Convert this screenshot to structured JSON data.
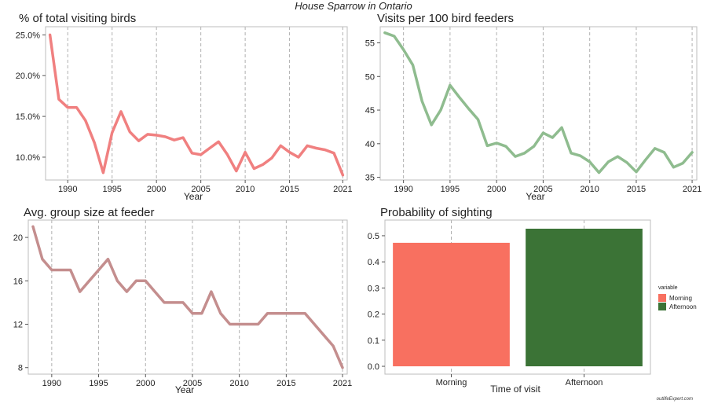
{
  "figure": {
    "title": "House Sparrow in Ontario",
    "credit": "outlifeExpert.com"
  },
  "chart_data": [
    {
      "type": "line",
      "title": "% of total visiting birds",
      "xlabel": "Year",
      "ylabel": "",
      "x_ticks": [
        1990,
        1995,
        2000,
        2005,
        2010,
        2015,
        2021
      ],
      "y_ticks": [
        10,
        15,
        20,
        25
      ],
      "y_tick_labels": [
        "10.0%",
        "15.0%",
        "20.0%",
        "25.0%"
      ],
      "xlim": [
        1987.5,
        2021.5
      ],
      "ylim": [
        7.2,
        26
      ],
      "grid": "vertical dashed at x ticks",
      "color": "#F08080",
      "x": [
        1988,
        1989,
        1990,
        1991,
        1992,
        1993,
        1994,
        1995,
        1996,
        1997,
        1998,
        1999,
        2000,
        2001,
        2002,
        2003,
        2004,
        2005,
        2006,
        2007,
        2008,
        2009,
        2010,
        2011,
        2012,
        2013,
        2014,
        2015,
        2016,
        2017,
        2018,
        2019,
        2020,
        2021
      ],
      "y": [
        25.0,
        17.1,
        16.1,
        16.1,
        14.5,
        11.8,
        8.1,
        13.0,
        15.6,
        13.1,
        12.0,
        12.8,
        12.7,
        12.5,
        12.1,
        12.4,
        10.5,
        10.3,
        11.1,
        11.9,
        10.3,
        8.3,
        10.6,
        8.6,
        9.1,
        9.9,
        11.4,
        10.6,
        10.0,
        11.4,
        11.1,
        10.9,
        10.5,
        7.8
      ]
    },
    {
      "type": "line",
      "title": "Visits per 100 bird feeders",
      "xlabel": "Year",
      "ylabel": "",
      "x_ticks": [
        1990,
        1995,
        2000,
        2005,
        2010,
        2015,
        2021
      ],
      "y_ticks": [
        35,
        40,
        45,
        50,
        55
      ],
      "y_tick_labels": [
        "35",
        "40",
        "45",
        "50",
        "55"
      ],
      "xlim": [
        1987.5,
        2021.5
      ],
      "ylim": [
        34.6,
        57.4
      ],
      "grid": "vertical dashed at x ticks",
      "color": "#8FBC8F",
      "x": [
        1988,
        1989,
        1990,
        1991,
        1992,
        1993,
        1994,
        1995,
        1996,
        1997,
        1998,
        1999,
        2000,
        2001,
        2002,
        2003,
        2004,
        2005,
        2006,
        2007,
        2008,
        2009,
        2010,
        2011,
        2012,
        2013,
        2014,
        2015,
        2016,
        2017,
        2018,
        2019,
        2020,
        2021
      ],
      "y": [
        56.5,
        56.0,
        54.0,
        51.7,
        46.3,
        42.8,
        45.0,
        48.7,
        46.9,
        45.2,
        43.6,
        39.7,
        40.1,
        39.6,
        38.1,
        38.6,
        39.6,
        41.6,
        40.9,
        42.4,
        38.6,
        38.2,
        37.3,
        35.7,
        37.3,
        38.1,
        37.2,
        35.8,
        37.6,
        39.3,
        38.7,
        36.5,
        37.1,
        38.7
      ]
    },
    {
      "type": "line",
      "title": "Avg. group size at feeder",
      "xlabel": "Year",
      "ylabel": "",
      "x_ticks": [
        1990,
        1995,
        2000,
        2005,
        2010,
        2015,
        2021
      ],
      "y_ticks": [
        8,
        12,
        16,
        20
      ],
      "y_tick_labels": [
        "8",
        "12",
        "16",
        "20"
      ],
      "xlim": [
        1987.5,
        2021.5
      ],
      "ylim": [
        7.4,
        21.6
      ],
      "grid": "vertical dashed at x ticks",
      "color": "#C48E8E",
      "x": [
        1988,
        1989,
        1990,
        1991,
        1992,
        1993,
        1994,
        1995,
        1996,
        1997,
        1998,
        1999,
        2000,
        2001,
        2002,
        2003,
        2004,
        2005,
        2006,
        2007,
        2008,
        2009,
        2010,
        2011,
        2012,
        2013,
        2014,
        2015,
        2016,
        2017,
        2018,
        2019,
        2020,
        2021
      ],
      "y": [
        21,
        18,
        17,
        17,
        17,
        15,
        16,
        17,
        18,
        16,
        15,
        16,
        16,
        15,
        14,
        14,
        14,
        13,
        13,
        15,
        13,
        12,
        12,
        12,
        12,
        13,
        13,
        13,
        13,
        13,
        12,
        11,
        10,
        8
      ]
    },
    {
      "type": "bar",
      "title": "Probability of sighting",
      "xlabel": "Time of visit",
      "ylabel": "",
      "categories": [
        "Morning",
        "Afternoon"
      ],
      "values": [
        0.473,
        0.527
      ],
      "colors": [
        "#F87060",
        "#3B7336"
      ],
      "y_ticks": [
        0.0,
        0.1,
        0.2,
        0.3,
        0.4,
        0.5
      ],
      "y_tick_labels": [
        "0.0",
        "0.1",
        "0.2",
        "0.3",
        "0.4",
        "0.5"
      ],
      "ylim": [
        -0.03,
        0.56
      ],
      "grid": "vertical dashed at bar centers",
      "legend": {
        "title": "variable",
        "placement": "right",
        "entries": [
          "Morning",
          "Afternoon"
        ]
      }
    }
  ]
}
